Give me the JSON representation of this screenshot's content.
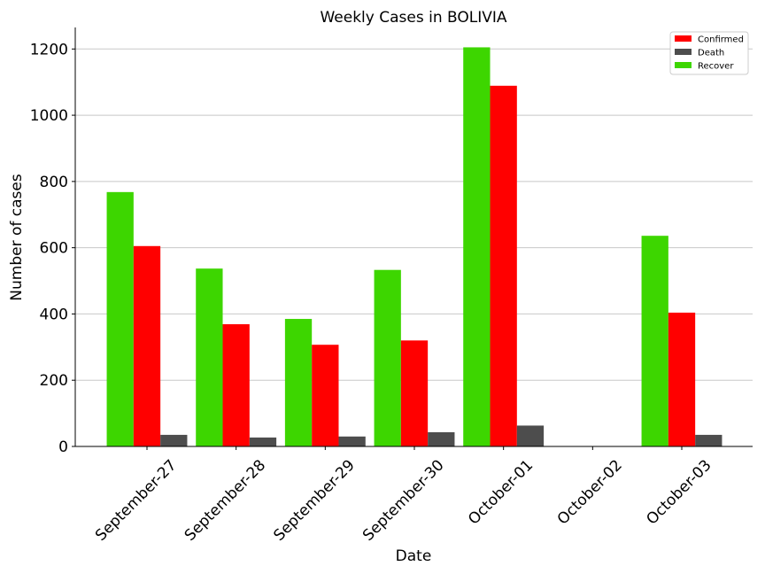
{
  "chart_data": {
    "type": "bar",
    "title": "Weekly Cases in BOLIVIA",
    "xlabel": "Date",
    "ylabel": "Number of cases",
    "categories": [
      "September-27",
      "September-28",
      "September-29",
      "September-30",
      "October-01",
      "October-02",
      "October-03"
    ],
    "series": [
      {
        "name": "Recover",
        "color": "#3dd600",
        "values": [
          768,
          537,
          385,
          533,
          1205,
          0,
          636
        ]
      },
      {
        "name": "Confirmed",
        "color": "#ff0000",
        "values": [
          605,
          369,
          307,
          320,
          1089,
          0,
          404
        ]
      },
      {
        "name": "Death",
        "color": "#4d4d4d",
        "values": [
          35,
          27,
          30,
          43,
          63,
          0,
          35
        ]
      }
    ],
    "legend_order": [
      "Confirmed",
      "Death",
      "Recover"
    ],
    "legend_position": "top-right",
    "ylim": [
      0,
      1265
    ],
    "yticks": [
      0,
      200,
      400,
      600,
      800,
      1000,
      1200
    ],
    "grid": "horizontal"
  }
}
